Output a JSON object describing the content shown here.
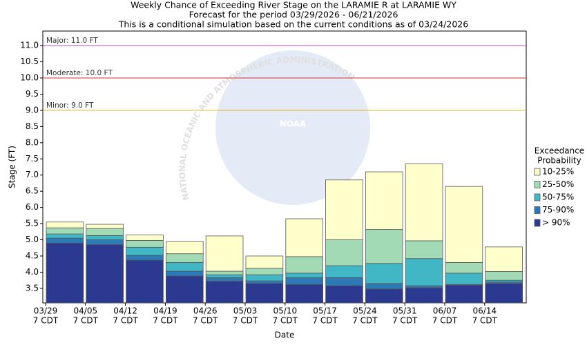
{
  "chart_data": {
    "type": "bar",
    "title": [
      "Weekly Chance of Exceeding River Stage on the LARAMIE R at LARAMIE WY",
      "Forecast for the period 03/29/2026 - 06/21/2026",
      "This is a conditional simulation based on the current conditions as of 03/24/2026"
    ],
    "x_label": "Date",
    "y_label": "Stage (FT)",
    "categories": [
      [
        "03/29",
        "7 CDT"
      ],
      [
        "04/05",
        "7 CDT"
      ],
      [
        "04/12",
        "7 CDT"
      ],
      [
        "04/19",
        "7 CDT"
      ],
      [
        "04/26",
        "7 CDT"
      ],
      [
        "05/03",
        "7 CDT"
      ],
      [
        "05/10",
        "7 CDT"
      ],
      [
        "05/17",
        "7 CDT"
      ],
      [
        "05/24",
        "7 CDT"
      ],
      [
        "05/31",
        "7 CDT"
      ],
      [
        "06/07",
        "7 CDT"
      ],
      [
        "06/14",
        "7 CDT"
      ]
    ],
    "series": [
      {
        "name": "> 90%",
        "color": "#2b3990",
        "values": [
          4.9,
          4.85,
          4.37,
          3.88,
          3.72,
          3.65,
          3.62,
          3.58,
          3.48,
          3.52,
          3.6,
          3.65
        ]
      },
      {
        "name": "75-90%",
        "color": "#2c7bb6",
        "values": [
          5.05,
          5.0,
          4.52,
          4.03,
          3.83,
          3.73,
          3.83,
          3.83,
          3.65,
          3.58,
          3.62,
          3.7
        ]
      },
      {
        "name": "50-75%",
        "color": "#41b6c4",
        "values": [
          5.18,
          5.13,
          4.77,
          4.3,
          3.92,
          3.92,
          3.97,
          4.2,
          4.27,
          4.42,
          3.97,
          3.75
        ]
      },
      {
        "name": "25-50%",
        "color": "#a1dab4",
        "values": [
          5.37,
          5.35,
          4.98,
          4.57,
          4.03,
          4.12,
          4.48,
          5.0,
          5.32,
          4.97,
          4.3,
          4.02
        ]
      },
      {
        "name": "10-25%",
        "color": "#ffffcc",
        "values": [
          5.55,
          5.48,
          5.15,
          4.95,
          5.12,
          4.5,
          5.65,
          6.85,
          7.1,
          7.35,
          6.65,
          4.78
        ]
      }
    ],
    "legend_title": [
      "Exceedance",
      "Probability"
    ],
    "ylim": [
      3.05,
      11.45
    ],
    "yticks": [
      3.5,
      {
        "value": 4,
        "label": "4.0"
      },
      4.5,
      {
        "value": 5,
        "label": "5.0"
      },
      5.5,
      {
        "value": 6,
        "label": "6.0"
      },
      6.5,
      {
        "value": 7,
        "label": "7.0"
      },
      7.5,
      {
        "value": 8,
        "label": "8.0"
      },
      8.5,
      {
        "value": 9,
        "label": "9.0"
      },
      9.5,
      {
        "value": 10,
        "label": "10.0"
      },
      10.5,
      {
        "value": 11,
        "label": "11.0"
      }
    ],
    "thresholds": [
      {
        "label": "Major: 11.0 FT",
        "value": 11,
        "color": "#c040c0"
      },
      {
        "label": "Moderate: 10.0 FT",
        "value": 10,
        "color": "#d03030"
      },
      {
        "label": "Minor: 9.0 FT",
        "value": 9,
        "color": "#e0b020"
      }
    ],
    "watermark": {
      "logo": "NOAA",
      "ring": "NATIONAL OCEANIC AND ATMOSPHERIC ADMINISTRATION"
    }
  }
}
